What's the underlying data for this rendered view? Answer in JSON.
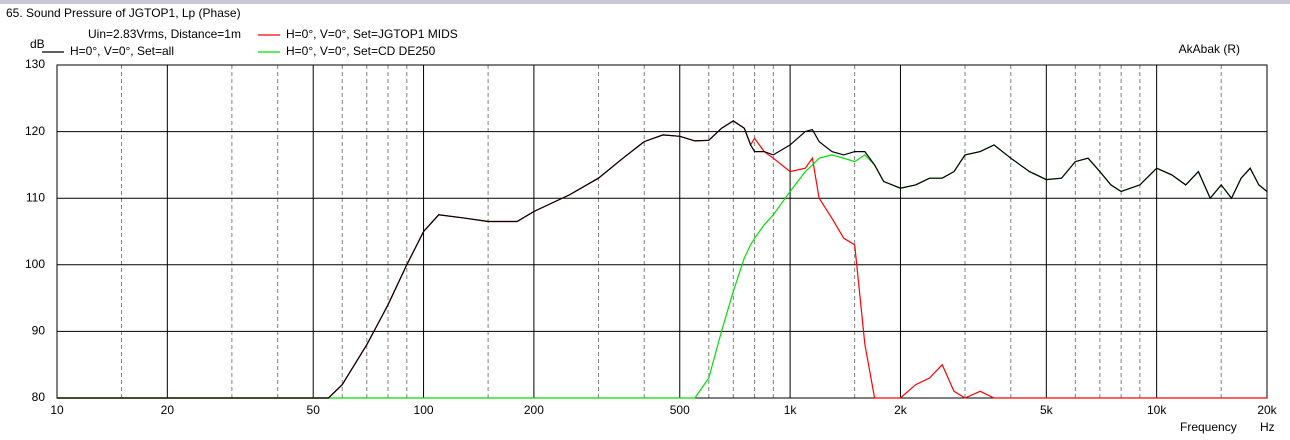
{
  "chart_data": {
    "type": "line",
    "title": "65. Sound Pressure of JGTOP1, Lp (Phase)",
    "subtitle": "Uin=2.83Vrms, Distance=1m",
    "annotation": "AkAbak (R)",
    "y_label": "dB",
    "x_label": "Frequency",
    "x_unit": "Hz",
    "x_log": true,
    "grid": true,
    "xlim": [
      10,
      20000
    ],
    "ylim": [
      80,
      130
    ],
    "yticks": [
      80,
      90,
      100,
      110,
      120,
      130
    ],
    "xticks": [
      10,
      20,
      50,
      100,
      200,
      500,
      {
        "value": 1000,
        "label": "1k"
      },
      {
        "value": 2000,
        "label": "2k"
      },
      {
        "value": 5000,
        "label": "5k"
      },
      {
        "value": 10000,
        "label": "10k"
      },
      {
        "value": 20000,
        "label": "20k"
      }
    ],
    "x_minor": [
      15,
      30,
      40,
      60,
      70,
      80,
      90,
      150,
      300,
      400,
      600,
      700,
      800,
      900,
      1500,
      3000,
      4000,
      6000,
      7000,
      8000,
      9000,
      15000
    ],
    "x": [
      10,
      20,
      40,
      50,
      55,
      60,
      70,
      80,
      90,
      100,
      110,
      130,
      150,
      180,
      200,
      250,
      300,
      350,
      400,
      450,
      500,
      550,
      600,
      650,
      700,
      750,
      780,
      800,
      850,
      900,
      1000,
      1100,
      1150,
      1200,
      1300,
      1400,
      1500,
      1600,
      1700,
      1800,
      2000,
      2200,
      2400,
      2600,
      2800,
      3000,
      3300,
      3600,
      4000,
      4500,
      5000,
      5500,
      6000,
      6500,
      7000,
      7500,
      8000,
      9000,
      10000,
      11000,
      12000,
      13000,
      14000,
      15000,
      16000,
      17000,
      18000,
      19000,
      20000
    ],
    "series": [
      {
        "name": "H=0°, V=0°, Set=all",
        "color": "#000000",
        "values": [
          80,
          80,
          80,
          80,
          80,
          82,
          88,
          94,
          100,
          105,
          107.5,
          107,
          106.5,
          106.5,
          108,
          110.5,
          113,
          116,
          118.5,
          119.5,
          119.3,
          118.6,
          118.7,
          120.5,
          121.6,
          120.5,
          118,
          117,
          117,
          116.5,
          118,
          120,
          120.3,
          118.5,
          117,
          116.5,
          117,
          117,
          115,
          112.5,
          111.5,
          112,
          113,
          113,
          114,
          116.5,
          117,
          118,
          116,
          114,
          112.8,
          113,
          115.5,
          116,
          114,
          112,
          111,
          112,
          114.5,
          113.5,
          112,
          114,
          110,
          112,
          110,
          113,
          114.5,
          112,
          111
        ]
      },
      {
        "name": "H=0°, V=0°, Set=JGTOP1 MIDS",
        "color": "#ff0000",
        "values": [
          80,
          80,
          80,
          80,
          80,
          82,
          88,
          94,
          100,
          105,
          107.5,
          107,
          106.5,
          106.5,
          108,
          110.5,
          113,
          116,
          118.5,
          119.5,
          119.3,
          118.6,
          118.7,
          120.5,
          121.6,
          120.5,
          118,
          119,
          117,
          116,
          114,
          114.5,
          116,
          110,
          107,
          104,
          103,
          88,
          80,
          80,
          80,
          82,
          83,
          85,
          81,
          80,
          81,
          80,
          80,
          80,
          80,
          80,
          80,
          80,
          80,
          80,
          80,
          80,
          80,
          80,
          80,
          80,
          80,
          80,
          80,
          80,
          80,
          80,
          80
        ]
      },
      {
        "name": "H=0°, V=0°, Set=CD DE250",
        "color": "#00e000",
        "values": [
          80,
          80,
          80,
          80,
          80,
          80,
          80,
          80,
          80,
          80,
          80,
          80,
          80,
          80,
          80,
          80,
          80,
          80,
          80,
          80,
          80,
          80,
          83,
          90,
          96,
          101,
          103,
          104,
          106,
          107.5,
          111,
          114,
          115,
          116,
          116.5,
          116,
          115.5,
          116.5,
          115,
          112.5,
          111.5,
          112,
          113,
          113,
          114,
          116.5,
          117,
          118,
          116,
          114,
          112.8,
          113,
          115.5,
          116,
          114,
          112,
          111,
          112,
          114.5,
          113.5,
          112,
          114,
          110,
          112,
          110,
          113,
          114.5,
          112,
          111
        ]
      }
    ]
  }
}
